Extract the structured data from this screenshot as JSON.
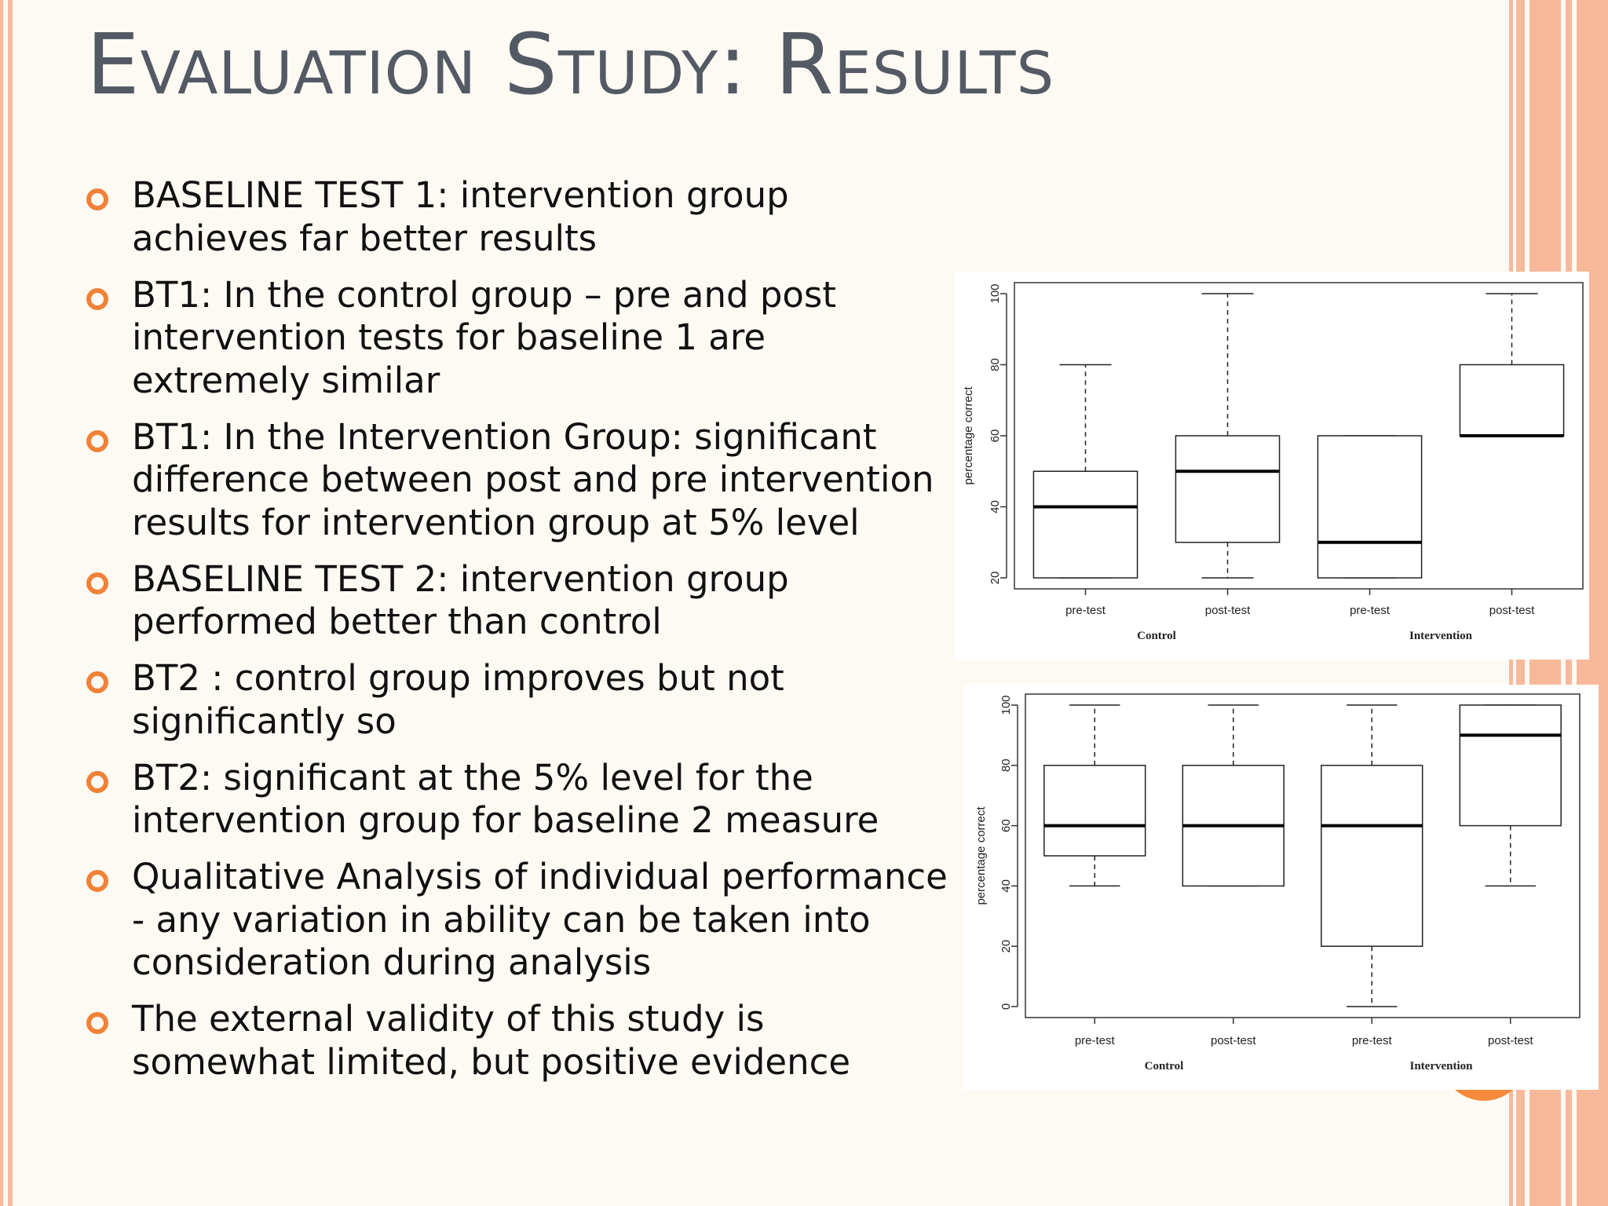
{
  "slide": {
    "title": "Evaluation Study: Results",
    "bullets": [
      "BASELINE TEST 1: intervention group achieves far better results",
      "BT1: In the control group – pre and post intervention tests for baseline 1 are extremely similar",
      "BT1: In the Intervention Group: significant difference between post and pre intervention results for intervention group at 5% level",
      "BASELINE TEST 2: intervention group performed better than control",
      "BT2 : control group improves but not significantly so",
      "BT2: significant at the 5% level for the intervention group for baseline 2 measure",
      "Qualitative Analysis of individual performance - any variation in ability can be taken into consideration during analysis",
      "The external validity of this study is somewhat limited, but positive evidence"
    ],
    "colors": {
      "accent": "#ef8238",
      "stripe": "#f8b99b",
      "title": "#545a64",
      "background": "#fdfaf4"
    }
  },
  "chart_data": [
    {
      "type": "boxplot",
      "ylabel": "percentage correct",
      "ylim": [
        20,
        100
      ],
      "yticks": [
        "20",
        "40",
        "60",
        "80",
        "100"
      ],
      "categories": [
        "pre-test",
        "post-test",
        "pre-test",
        "post-test"
      ],
      "groups": [
        "Control",
        "Intervention"
      ],
      "boxes": [
        {
          "group": "Control",
          "label": "pre-test",
          "min": 20,
          "q1": 20,
          "median": 40,
          "q3": 50,
          "max": 80
        },
        {
          "group": "Control",
          "label": "post-test",
          "min": 20,
          "q1": 30,
          "median": 50,
          "q3": 60,
          "max": 100
        },
        {
          "group": "Intervention",
          "label": "pre-test",
          "min": 20,
          "q1": 20,
          "median": 30,
          "q3": 60,
          "max": 60
        },
        {
          "group": "Intervention",
          "label": "post-test",
          "min": 60,
          "q1": 60,
          "median": 60,
          "q3": 80,
          "max": 100
        }
      ]
    },
    {
      "type": "boxplot",
      "ylabel": "percentage correct",
      "ylim": [
        0,
        100
      ],
      "yticks": [
        "0",
        "20",
        "40",
        "60",
        "80",
        "100"
      ],
      "categories": [
        "pre-test",
        "post-test",
        "pre-test",
        "post-test"
      ],
      "groups": [
        "Control",
        "Intervention"
      ],
      "boxes": [
        {
          "group": "Control",
          "label": "pre-test",
          "min": 40,
          "q1": 50,
          "median": 60,
          "q3": 80,
          "max": 100
        },
        {
          "group": "Control",
          "label": "post-test",
          "min": 40,
          "q1": 40,
          "median": 60,
          "q3": 80,
          "max": 100
        },
        {
          "group": "Intervention",
          "label": "pre-test",
          "min": 0,
          "q1": 20,
          "median": 60,
          "q3": 80,
          "max": 100
        },
        {
          "group": "Intervention",
          "label": "post-test",
          "min": 40,
          "q1": 60,
          "median": 90,
          "q3": 100,
          "max": 100
        }
      ]
    }
  ]
}
